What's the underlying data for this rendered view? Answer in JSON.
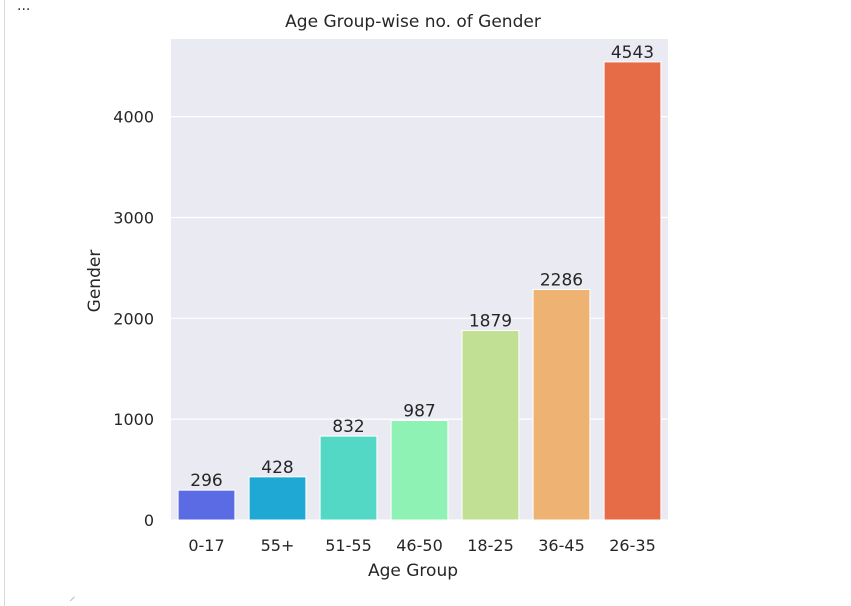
{
  "output": {
    "overflow_label": "..."
  },
  "colors": {
    "plot_background": "#eaeaf2",
    "grid": "#ffffff",
    "text": "#262626",
    "bars": [
      "#5b6be3",
      "#1fa8d4",
      "#52d8c5",
      "#8ef2b4",
      "#c1e094",
      "#eeb373",
      "#e66c47"
    ]
  },
  "chart_data": {
    "type": "bar",
    "title": "Age Group-wise no. of Gender",
    "xlabel": "Age Group",
    "ylabel": "Gender",
    "categories": [
      "0-17",
      "55+",
      "51-55",
      "46-50",
      "18-25",
      "36-45",
      "26-35"
    ],
    "values": [
      296,
      428,
      832,
      987,
      1879,
      2286,
      4543
    ],
    "data_labels": [
      "296",
      "428",
      "832",
      "987",
      "1879",
      "2286",
      "4543"
    ],
    "y_ticks": [
      0,
      1000,
      2000,
      3000,
      4000
    ],
    "y_tick_labels": [
      "0",
      "1000",
      "2000",
      "3000",
      "4000"
    ],
    "ylim": [
      0,
      4770
    ],
    "grid": true,
    "legend": false
  }
}
